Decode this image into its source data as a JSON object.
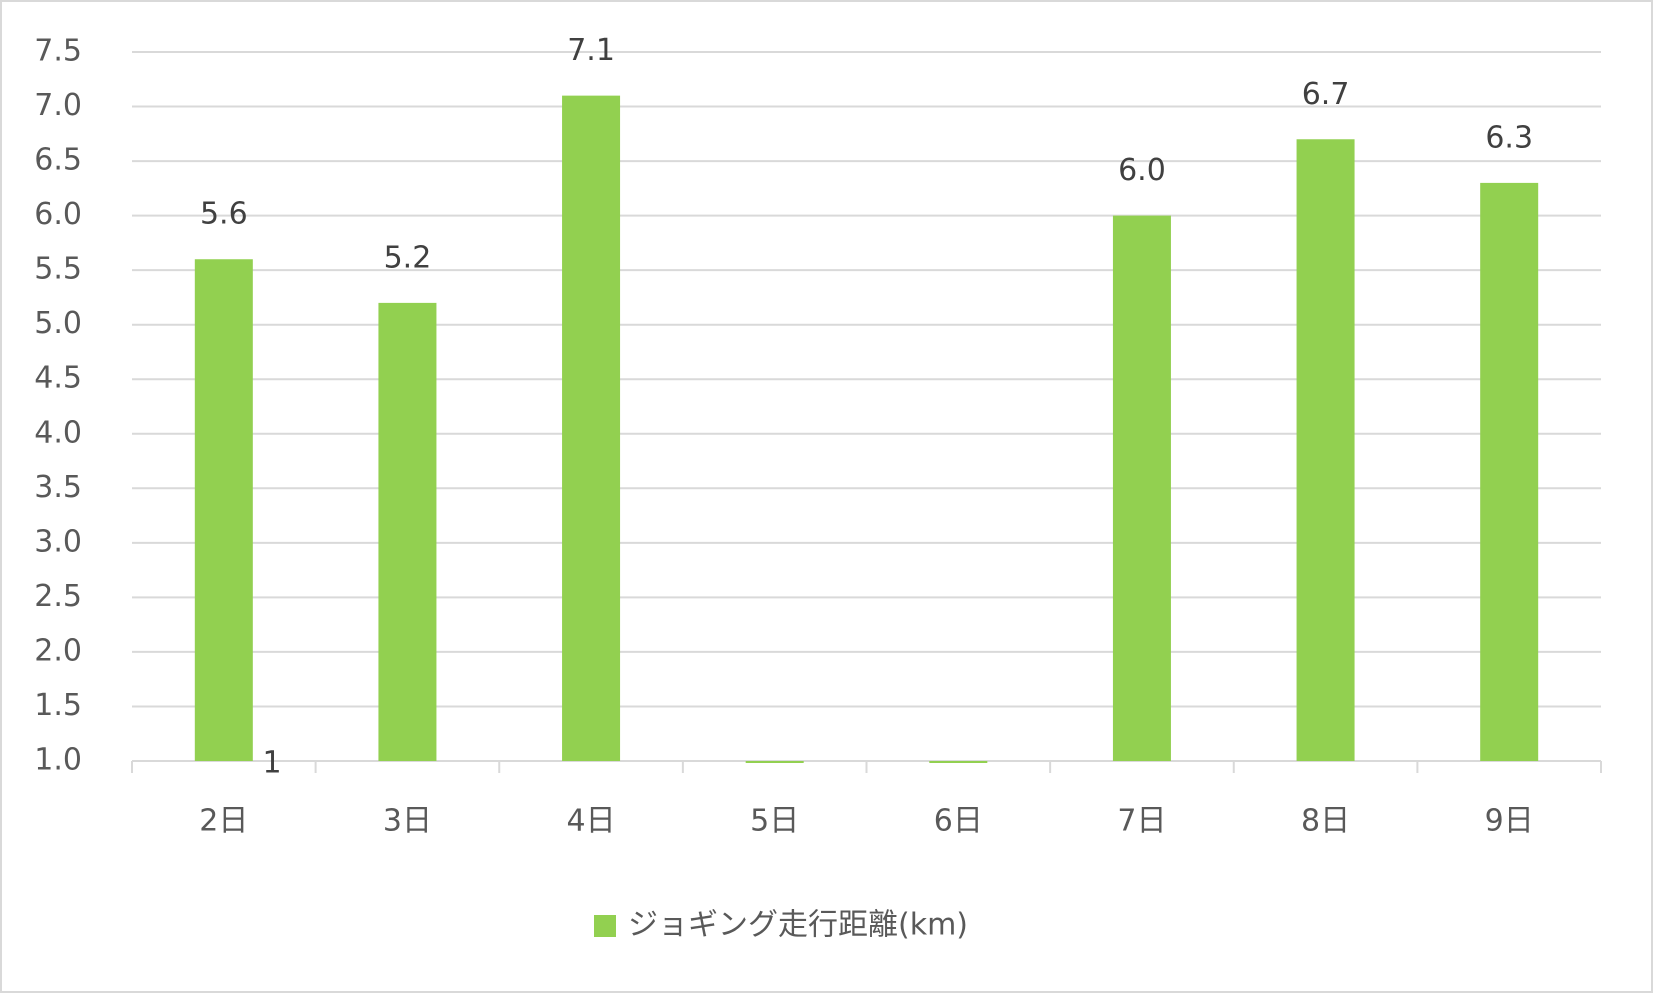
{
  "chart_data": {
    "type": "bar",
    "categories": [
      "2日",
      "3日",
      "4日",
      "5日",
      "6日",
      "7日",
      "8日",
      "9日"
    ],
    "series": [
      {
        "name": "ジョギング走行距離(km)",
        "color": "#92d050",
        "values": [
          5.6,
          5.2,
          7.1,
          1,
          1,
          6,
          6.7,
          6.3
        ],
        "value_labels": [
          "5.6",
          "5.2",
          "7.1",
          null,
          null,
          "6.0",
          "6.7",
          "6.3"
        ]
      }
    ],
    "annotations": [
      "1"
    ],
    "ylim": [
      1,
      7.5
    ],
    "yticks": [
      {
        "value": 1,
        "label": "1.0"
      },
      1.5,
      {
        "value": 2,
        "label": "2.0"
      },
      2.5,
      {
        "value": 3,
        "label": "3.0"
      },
      3.5,
      {
        "value": 4,
        "label": "4.0"
      },
      4.5,
      {
        "value": 5,
        "label": "5.0"
      },
      5.5,
      {
        "value": 6,
        "label": "6.0"
      },
      6.5,
      {
        "value": 7,
        "label": "7.0"
      },
      7.5
    ],
    "grid": true,
    "legend": "bottom"
  }
}
